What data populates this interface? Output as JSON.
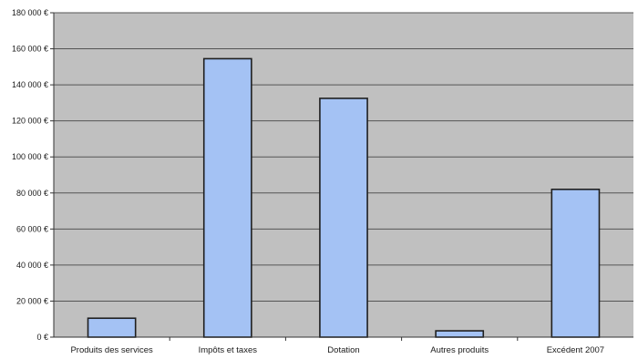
{
  "chart_data": {
    "type": "bar",
    "categories": [
      "Produits des services",
      "Impôts et taxes",
      "Dotation",
      "Autres produits",
      "Excédent 2007"
    ],
    "values": [
      10500,
      154500,
      132500,
      3500,
      82000
    ],
    "ylim": [
      0,
      180000
    ],
    "yticks": [
      0,
      20000,
      40000,
      60000,
      80000,
      100000,
      120000,
      140000,
      160000,
      180000
    ],
    "ytick_labels": [
      "0 €",
      "20 000 €",
      "40 000 €",
      "60 000 €",
      "80 000 €",
      "100 000 €",
      "120 000 €",
      "140 000 €",
      "160 000 €",
      "180 000 €"
    ],
    "grid": true,
    "legend": "none",
    "colors": {
      "bar_fill": "#a4c2f4",
      "bar_stroke": "#1f1f1f",
      "plot_background": "#c0c0c0",
      "gridline": "#555555",
      "axis": "#333333"
    }
  }
}
